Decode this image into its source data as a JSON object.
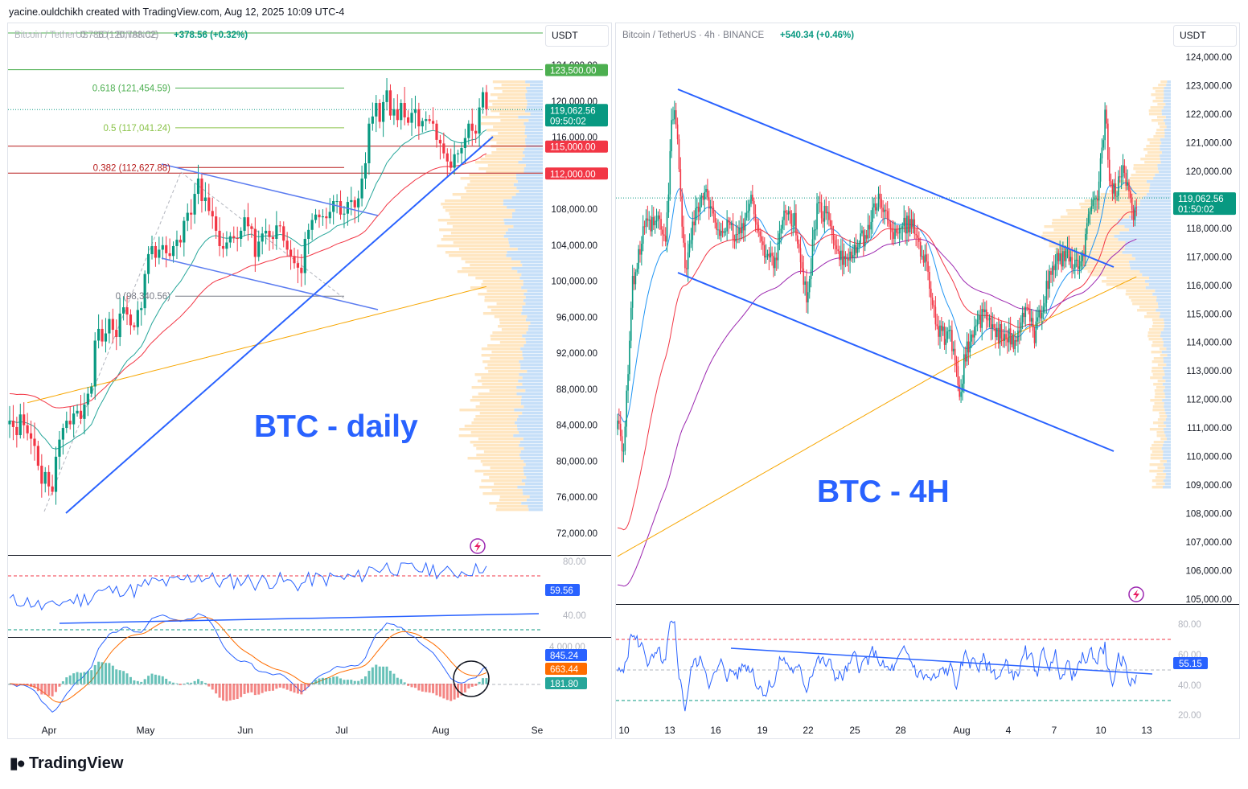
{
  "header": {
    "credit": "yacine.ouldchikh created with TradingView.com, Aug 12, 2025 10:09 UTC-4"
  },
  "brand": {
    "name": "TradingView"
  },
  "colors": {
    "up": "#089981",
    "down": "#f23645",
    "line": "#2962ff",
    "rsi": "#2962ff",
    "ema_short": "#089981",
    "ema_mid": "#f23645",
    "ema_long": "#f7a600",
    "ema_4h_purple": "#9c27b0",
    "fib_green": "#4caf50",
    "fib_red": "#b71c1c",
    "vp_blue": "#b3d4f5",
    "vp_orange": "#ffe0b2"
  },
  "chart_data": [
    {
      "type": "candlestick",
      "title_line": "Bitcoin / TetherUS · 1D · BINANCE",
      "title_overlay": "0.786 (120,788.02)",
      "change": "+378.56 (+0.32%)",
      "label": "BTC - daily",
      "currency": "USDT",
      "ylim": [
        72000,
        124000
      ],
      "y_ticks": [
        "124,000.00",
        "120,000.00",
        "116,000.00",
        "108,000.00",
        "104,000.00",
        "100,000.00",
        "96,000.00",
        "92,000.00",
        "88,000.00",
        "84,000.00",
        "80,000.00",
        "76,000.00",
        "72,000.00"
      ],
      "y_tick_values": [
        124000,
        120000,
        116000,
        108000,
        104000,
        100000,
        96000,
        92000,
        88000,
        84000,
        80000,
        76000,
        72000
      ],
      "x_ticks": [
        "Apr",
        "May",
        "Jun",
        "Jul",
        "Aug",
        "Se"
      ],
      "price_tags": [
        {
          "value": 123500,
          "text": "123,500.00",
          "color": "#4caf50"
        },
        {
          "value": 119062.56,
          "text": "119,062.56",
          "sub": "09:50:02",
          "color": "#089981"
        },
        {
          "value": 115000,
          "text": "115,000.00",
          "color": "#f23645"
        },
        {
          "value": 112000,
          "text": "112,000.00",
          "color": "#f23645"
        }
      ],
      "fib_levels": [
        {
          "label": "0.618 (121,454.59)",
          "value": 121454.59,
          "color": "#4caf50"
        },
        {
          "label": "0.5 (117,041.24)",
          "value": 117041.24,
          "color": "#8bc34a"
        },
        {
          "label": "0.382 (112,627.88)",
          "value": 112627.88,
          "color": "#b71c1c"
        },
        {
          "label": "0 (98,340.56)",
          "value": 98340.56,
          "color": "#787b86"
        }
      ],
      "closes": [
        84500,
        83800,
        82900,
        85200,
        84000,
        83100,
        82500,
        81700,
        79500,
        77500,
        78800,
        77200,
        76600,
        80500,
        82400,
        83700,
        84500,
        84100,
        85300,
        85600,
        84700,
        86300,
        87500,
        88300,
        93400,
        94700,
        93300,
        94200,
        95800,
        94600,
        93800,
        96400,
        97100,
        96300,
        95100,
        94900,
        96800,
        97000,
        100800,
        103000,
        103900,
        102600,
        103500,
        104000,
        103100,
        102800,
        103900,
        104600,
        104300,
        106700,
        107600,
        107400,
        109700,
        111400,
        108900,
        109300,
        107800,
        107200,
        105600,
        103900,
        103600,
        104300,
        105000,
        104800,
        104700,
        105600,
        107100,
        106100,
        105800,
        102700,
        104400,
        105300,
        105600,
        104900,
        104700,
        106200,
        106100,
        104500,
        103500,
        102800,
        102000,
        101500,
        100900,
        104700,
        105700,
        106800,
        107400,
        107100,
        107200,
        107000,
        107700,
        108900,
        108900,
        107400,
        107500,
        108800,
        109000,
        108200,
        109200,
        111400,
        113100,
        117500,
        118300,
        119800,
        117700,
        119900,
        121200,
        118400,
        119100,
        117900,
        119800,
        118200,
        117600,
        118700,
        119100,
        117200,
        117800,
        118000,
        117800,
        117500,
        115700,
        115300,
        114200,
        113300,
        112600,
        114100,
        114200,
        114800,
        115900,
        117500,
        116700,
        116400,
        119300,
        121000,
        119100
      ]
    },
    {
      "type": "candlestick",
      "title_line": "Bitcoin / TetherUS · 4h · BINANCE",
      "change": "+540.34 (+0.46%)",
      "label": "BTC - 4H",
      "currency": "USDT",
      "ylim": [
        105000,
        124000
      ],
      "y_ticks": [
        "124,000.00",
        "123,000.00",
        "122,000.00",
        "121,000.00",
        "120,000.00",
        "118,000.00",
        "117,000.00",
        "116,000.00",
        "115,000.00",
        "114,000.00",
        "113,000.00",
        "112,000.00",
        "111,000.00",
        "110,000.00",
        "109,000.00",
        "108,000.00",
        "107,000.00",
        "106,000.00",
        "105,000.00"
      ],
      "y_tick_values": [
        124000,
        123000,
        122000,
        121000,
        120000,
        118000,
        117000,
        116000,
        115000,
        114000,
        113000,
        112000,
        111000,
        110000,
        109000,
        108000,
        107000,
        106000,
        105000
      ],
      "x_ticks": [
        "10",
        "13",
        "16",
        "19",
        "22",
        "25",
        "28",
        "Aug",
        "4",
        "7",
        "10",
        "13"
      ],
      "price_tags": [
        {
          "value": 119062.56,
          "text": "119,062.56",
          "sub": "01:50:02",
          "color": "#089981"
        }
      ]
    }
  ],
  "indicators": {
    "daily_rsi": {
      "value": "59.56",
      "ticks": [
        "80.00",
        "40.00"
      ]
    },
    "daily_macd": {
      "ticks": [
        "4,000.00"
      ],
      "tags": [
        "845.24",
        "663.44",
        "181.80"
      ]
    },
    "h4_rsi": {
      "value": "55.15",
      "ticks": [
        "80.00",
        "60.00",
        "40.00",
        "20.00"
      ]
    }
  }
}
